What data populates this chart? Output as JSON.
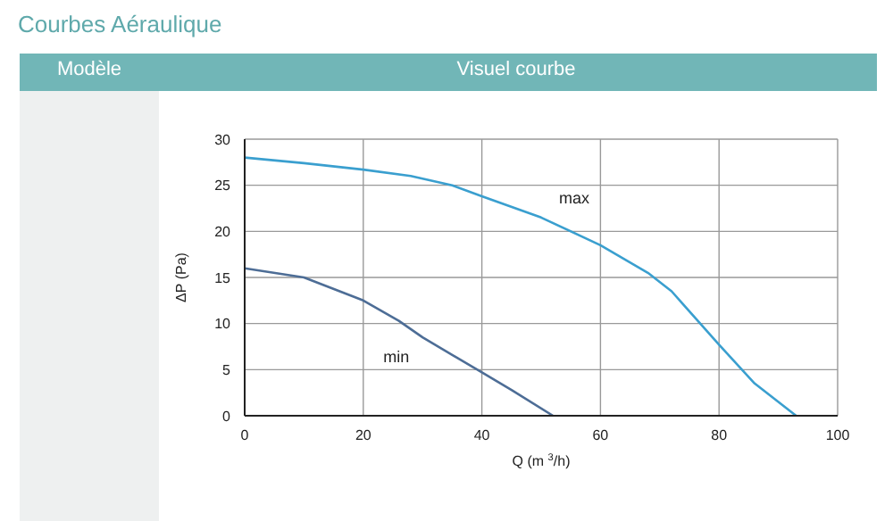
{
  "chart_data": {
    "type": "line",
    "title": "Courbes Aéraulique",
    "annotations": [
      "Modèle",
      "Visuel courbe"
    ],
    "xlabel": "Q (m $^{3}$/h)",
    "ylabel": "ΔP (Pa)",
    "series": [
      {
        "name": "max",
        "color": "#3a9fcf",
        "x": [
          0,
          10,
          20,
          28,
          35,
          40,
          50,
          60,
          68,
          72,
          80,
          86,
          93
        ],
        "values": [
          28,
          27.4,
          26.7,
          26,
          25,
          23.8,
          21.5,
          18.5,
          15.5,
          13.5,
          7.7,
          3.5,
          0
        ]
      },
      {
        "name": "min",
        "color": "#4d6d96",
        "x": [
          0,
          10,
          20,
          26,
          30,
          40,
          45,
          52
        ],
        "values": [
          16,
          15,
          12.5,
          10.3,
          8.5,
          4.7,
          2.8,
          0
        ]
      }
    ],
    "xlim": [
      0,
      100
    ],
    "xticks": [
      0,
      20,
      40,
      60,
      80,
      100
    ],
    "ylim": [
      0,
      30
    ],
    "yticks": [
      0,
      5,
      10,
      15,
      20,
      25,
      30
    ],
    "grid": true,
    "marker": "none",
    "line_style": "solid"
  }
}
